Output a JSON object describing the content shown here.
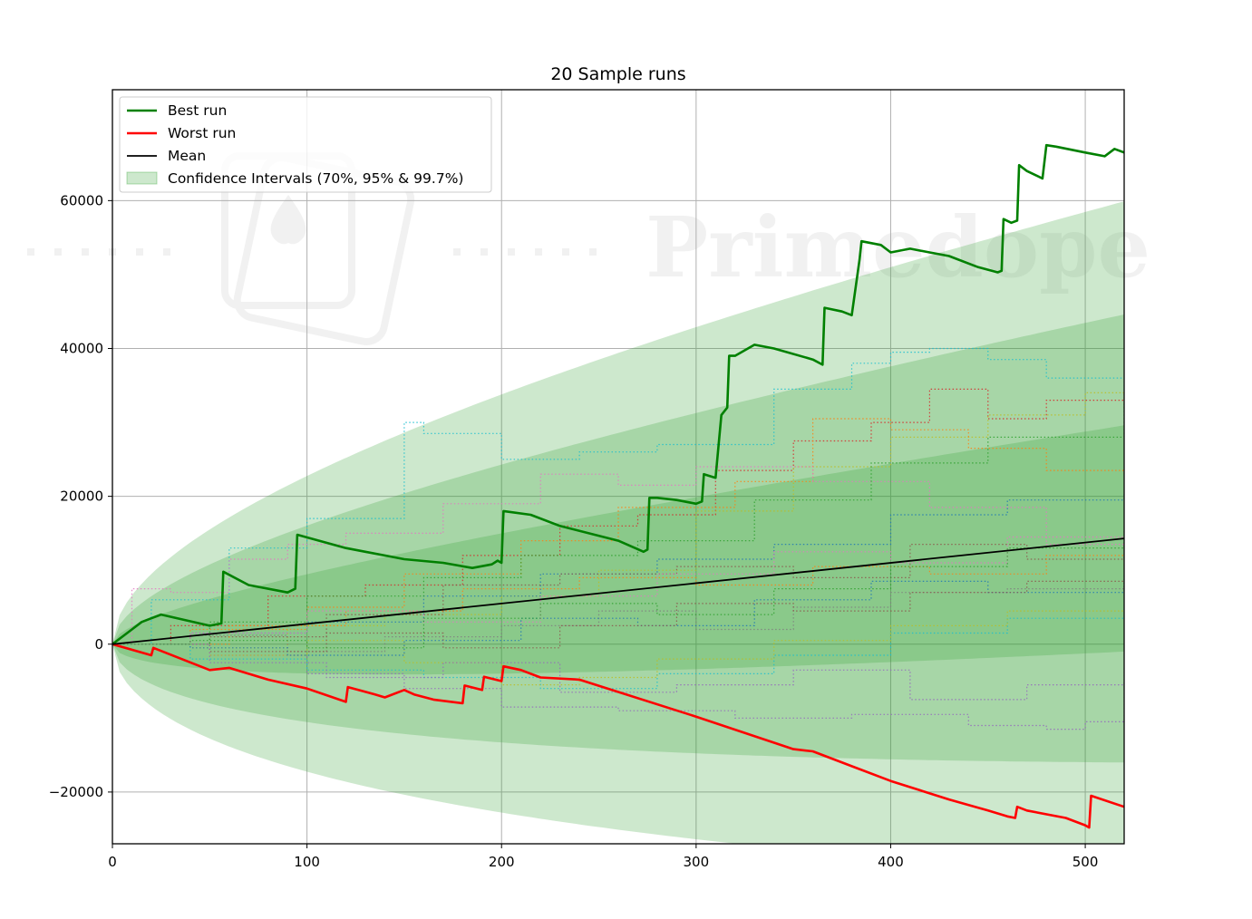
{
  "chart_data": {
    "type": "line",
    "title": "20 Sample runs",
    "xlabel": "",
    "ylabel": "",
    "xlim": [
      0,
      520
    ],
    "ylim": [
      -27000,
      75000
    ],
    "xticks": [
      0,
      100,
      200,
      300,
      400,
      500
    ],
    "yticks": [
      -20000,
      0,
      20000,
      40000,
      60000
    ],
    "ytick_labels": [
      "−20000",
      "0",
      "20000",
      "40000",
      "60000"
    ],
    "grid": true,
    "legend_position": "top-left",
    "watermark": "Primedope",
    "colors": {
      "best": "#008000",
      "worst": "#ff0000",
      "mean": "#000000",
      "ci": "#2ca02c"
    },
    "legend": [
      {
        "label": "Best run",
        "kind": "line",
        "color": "#008000"
      },
      {
        "label": "Worst run",
        "kind": "line",
        "color": "#ff0000"
      },
      {
        "label": "Mean",
        "kind": "line",
        "color": "#000000"
      },
      {
        "label": "Confidence Intervals (70%, 95% & 99.7%)",
        "kind": "patch",
        "color": "#2ca02c"
      }
    ],
    "mean": {
      "x": [
        0,
        520
      ],
      "y": [
        0,
        14300
      ]
    },
    "confidence_bands": [
      {
        "level": "70%",
        "offset_at_x520": 15300
      },
      {
        "level": "95%",
        "offset_at_x520": 30300
      },
      {
        "level": "99.7%",
        "offset_at_x520": 45600
      }
    ],
    "best_run": {
      "name": "Best run",
      "x": [
        0,
        10,
        15,
        20,
        25,
        50,
        56,
        57,
        70,
        90,
        94,
        95,
        120,
        130,
        140,
        150,
        170,
        185,
        195,
        198,
        200,
        201,
        215,
        230,
        260,
        273,
        275,
        276,
        280,
        290,
        300,
        303,
        304,
        310,
        313,
        316,
        317,
        320,
        330,
        340,
        360,
        365,
        366,
        375,
        380,
        384,
        385,
        395,
        400,
        410,
        420,
        430,
        445,
        455,
        457,
        458,
        462,
        465,
        466,
        470,
        478,
        480,
        485,
        500,
        510,
        515,
        520
      ],
      "y": [
        0,
        2000,
        3000,
        3500,
        4000,
        2500,
        2800,
        9800,
        8000,
        7000,
        7500,
        14800,
        13000,
        12500,
        12000,
        11500,
        11000,
        10300,
        10800,
        11300,
        11000,
        18000,
        17500,
        16000,
        14000,
        12500,
        12800,
        19800,
        19800,
        19500,
        19000,
        19300,
        23000,
        22500,
        31000,
        32000,
        39000,
        39000,
        40500,
        40000,
        38500,
        37800,
        45500,
        45000,
        44500,
        52000,
        54500,
        54000,
        53000,
        53500,
        53000,
        52500,
        51000,
        50300,
        50500,
        57500,
        57000,
        57300,
        64800,
        64000,
        63000,
        67500,
        67300,
        66500,
        66000,
        67000,
        66500
      ]
    },
    "worst_run": {
      "name": "Worst run",
      "x": [
        0,
        20,
        21,
        50,
        60,
        80,
        100,
        120,
        121,
        135,
        140,
        150,
        155,
        165,
        180,
        181,
        190,
        191,
        200,
        201,
        210,
        220,
        240,
        300,
        350,
        360,
        380,
        400,
        430,
        450,
        460,
        464,
        465,
        470,
        490,
        500,
        502,
        503,
        520
      ],
      "y": [
        0,
        -1500,
        -500,
        -3500,
        -3200,
        -4800,
        -6000,
        -7800,
        -5800,
        -6800,
        -7200,
        -6200,
        -6800,
        -7500,
        -8000,
        -5600,
        -6200,
        -4400,
        -5000,
        -3000,
        -3500,
        -4500,
        -4800,
        -9800,
        -14200,
        -14500,
        -16500,
        -18500,
        -21000,
        -22500,
        -23300,
        -23500,
        -22000,
        -22500,
        -23500,
        -24500,
        -24800,
        -20500,
        -22000
      ]
    },
    "sample_runs": [
      {
        "color": "#17becf",
        "x": [
          0,
          20,
          60,
          100,
          150,
          160,
          200,
          240,
          280,
          340,
          380,
          400,
          420,
          450,
          480,
          520
        ],
        "y": [
          0,
          6000,
          13000,
          17000,
          30000,
          28500,
          25000,
          26000,
          27000,
          34500,
          38000,
          39500,
          40000,
          38500,
          36000,
          34000
        ]
      },
      {
        "color": "#d62728",
        "x": [
          0,
          30,
          80,
          130,
          180,
          230,
          270,
          310,
          350,
          390,
          420,
          450,
          480,
          520
        ],
        "y": [
          0,
          2500,
          6500,
          8000,
          12000,
          16000,
          17500,
          23500,
          27500,
          30000,
          34500,
          30500,
          33000,
          34000
        ]
      },
      {
        "color": "#bcbd22",
        "x": [
          0,
          40,
          90,
          140,
          200,
          250,
          300,
          350,
          400,
          450,
          500,
          520
        ],
        "y": [
          0,
          -500,
          2500,
          4000,
          6500,
          10000,
          18000,
          24000,
          28000,
          31000,
          34000,
          32000
        ]
      },
      {
        "color": "#ff7f0e",
        "x": [
          0,
          40,
          100,
          150,
          210,
          260,
          320,
          360,
          400,
          440,
          480,
          520
        ],
        "y": [
          0,
          2000,
          5000,
          9500,
          14000,
          18500,
          22000,
          30500,
          29000,
          26500,
          23500,
          23000
        ]
      },
      {
        "color": "#1f77b4",
        "x": [
          0,
          40,
          100,
          160,
          220,
          280,
          340,
          400,
          460,
          520
        ],
        "y": [
          0,
          1500,
          3000,
          6500,
          9500,
          11500,
          13500,
          17500,
          19500,
          20500
        ]
      },
      {
        "color": "#8c564b",
        "x": [
          0,
          50,
          110,
          170,
          230,
          290,
          350,
          410,
          470,
          520
        ],
        "y": [
          0,
          1000,
          4000,
          8000,
          9500,
          10500,
          9000,
          13500,
          11500,
          14500
        ]
      },
      {
        "color": "#e377c2",
        "x": [
          0,
          10,
          30,
          60,
          90,
          120,
          170,
          220,
          260,
          300,
          360,
          420,
          480,
          520
        ],
        "y": [
          0,
          7500,
          7000,
          11500,
          13500,
          15000,
          19000,
          23000,
          21500,
          24000,
          22000,
          18500,
          13500,
          11000
        ]
      },
      {
        "color": "#9467bd",
        "x": [
          0,
          50,
          100,
          150,
          200,
          260,
          320,
          380,
          440,
          480,
          500,
          520
        ],
        "y": [
          0,
          -1500,
          -4000,
          -6000,
          -8500,
          -9000,
          -10000,
          -9500,
          -11000,
          -11500,
          -10500,
          -5000
        ]
      },
      {
        "color": "#2ca02c",
        "x": [
          0,
          50,
          100,
          160,
          210,
          270,
          330,
          390,
          450,
          520
        ],
        "y": [
          0,
          3000,
          6500,
          9000,
          12000,
          14000,
          19500,
          24500,
          28000,
          32500
        ]
      },
      {
        "color": "#7f7f7f",
        "x": [
          0,
          40,
          90,
          140,
          200,
          250,
          300,
          350,
          400,
          460,
          520
        ],
        "y": [
          0,
          1200,
          -1000,
          1000,
          2500,
          4500,
          2000,
          5000,
          7000,
          7500,
          8000
        ]
      },
      {
        "color": "#17becf",
        "x": [
          0,
          40,
          100,
          160,
          220,
          280,
          340,
          400,
          460,
          520
        ],
        "y": [
          0,
          -2000,
          -3500,
          -4500,
          -6000,
          -4000,
          -1500,
          1500,
          3500,
          6000
        ]
      },
      {
        "color": "#bcbd22",
        "x": [
          0,
          50,
          100,
          150,
          200,
          240,
          280,
          340,
          400,
          460,
          520
        ],
        "y": [
          0,
          -1500,
          500,
          -2500,
          -5500,
          -4500,
          -2000,
          500,
          2500,
          4500,
          4000
        ]
      },
      {
        "color": "#ff7f0e",
        "x": [
          0,
          60,
          120,
          180,
          240,
          300,
          360,
          420,
          480,
          520
        ],
        "y": [
          0,
          2500,
          4500,
          7500,
          9000,
          8000,
          10500,
          9500,
          12000,
          10000
        ]
      },
      {
        "color": "#1f77b4",
        "x": [
          0,
          40,
          90,
          150,
          210,
          270,
          330,
          390,
          450,
          520
        ],
        "y": [
          0,
          -500,
          -1500,
          500,
          3500,
          2500,
          6000,
          8500,
          7000,
          9500
        ]
      },
      {
        "color": "#8c564b",
        "x": [
          0,
          50,
          110,
          170,
          230,
          290,
          350,
          410,
          470,
          520
        ],
        "y": [
          0,
          -1000,
          1500,
          -500,
          2500,
          5500,
          4500,
          7000,
          8500,
          7500
        ]
      },
      {
        "color": "#e377c2",
        "x": [
          0,
          40,
          100,
          160,
          220,
          280,
          340,
          400,
          460,
          520
        ],
        "y": [
          0,
          1500,
          4500,
          3000,
          6500,
          9500,
          12500,
          11000,
          14500,
          16500
        ]
      },
      {
        "color": "#9467bd",
        "x": [
          0,
          50,
          110,
          170,
          230,
          290,
          350,
          410,
          470,
          520
        ],
        "y": [
          0,
          -2500,
          -4500,
          -2500,
          -6500,
          -5500,
          -3500,
          -7500,
          -5500,
          -3000
        ]
      },
      {
        "color": "#2ca02c",
        "x": [
          0,
          40,
          100,
          160,
          220,
          280,
          340,
          400,
          460,
          520
        ],
        "y": [
          0,
          500,
          -500,
          3500,
          5500,
          4000,
          7500,
          10500,
          13000,
          15500
        ]
      }
    ]
  }
}
